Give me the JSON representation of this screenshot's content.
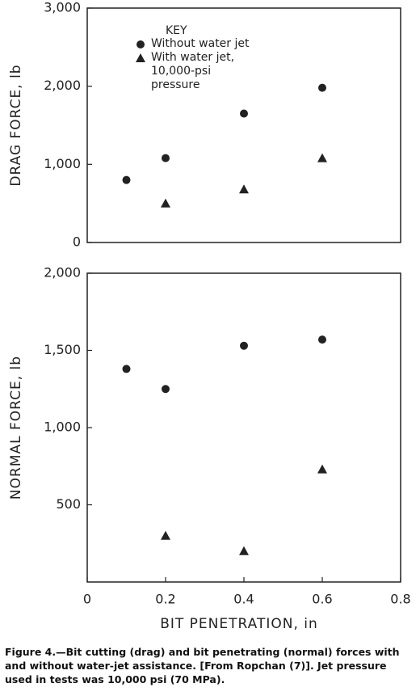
{
  "chart_data": [
    {
      "type": "scatter",
      "ylabel": "DRAG FORCE, lb",
      "xlim": [
        0,
        0.8
      ],
      "ylim": [
        0,
        3000
      ],
      "yticks": [
        0,
        {
          "value": 1000,
          "label": "1,000"
        },
        {
          "value": 2000,
          "label": "2,000"
        },
        {
          "value": 3000,
          "label": "3,000"
        }
      ],
      "legend_title": "KEY",
      "legend": "top-left",
      "series": [
        {
          "name": "Without water jet",
          "color": "#222222",
          "marker": "circle",
          "x": [
            0.1,
            0.2,
            0.4,
            0.6
          ],
          "values": [
            800,
            1080,
            1650,
            1980
          ]
        },
        {
          "name": "With water jet, 10,000-psi pressure",
          "color": "#222222",
          "marker": "triangle",
          "x": [
            0.2,
            0.4,
            0.6
          ],
          "values": [
            500,
            680,
            1080
          ]
        }
      ]
    },
    {
      "type": "scatter",
      "ylabel": "NORMAL FORCE, lb",
      "xlabel": "BIT PENETRATION, in",
      "xlim": [
        0,
        0.8
      ],
      "ylim": [
        0,
        2000
      ],
      "xticks": [
        0,
        0.2,
        0.4,
        0.6,
        0.8
      ],
      "yticks": [
        500,
        {
          "value": 1000,
          "label": "1,000"
        },
        {
          "value": 1500,
          "label": "1,500"
        },
        {
          "value": 2000,
          "label": "2,000"
        }
      ],
      "series": [
        {
          "name": "Without water jet",
          "color": "#222222",
          "marker": "circle",
          "x": [
            0.1,
            0.2,
            0.4,
            0.6
          ],
          "values": [
            1380,
            1250,
            1530,
            1570
          ]
        },
        {
          "name": "With water jet, 10,000-psi pressure",
          "color": "#222222",
          "marker": "triangle",
          "x": [
            0.2,
            0.4,
            0.6
          ],
          "values": [
            300,
            200,
            730
          ]
        }
      ]
    }
  ],
  "caption": "Figure 4.—Bit cutting (drag) and bit penetrating (normal) forces with and without water-jet assistance. [From Ropchan (7)]. Jet pressure used in tests was 10,000 psi (70 MPa)."
}
